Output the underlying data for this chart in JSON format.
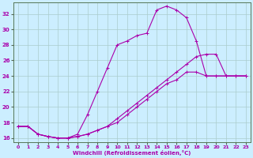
{
  "xlabel": "Windchill (Refroidissement éolien,°C)",
  "ylabel": "",
  "bg_color": "#cceeff",
  "line_color": "#aa00aa",
  "grid_color": "#aacccc",
  "xlim": [
    -0.5,
    23.5
  ],
  "ylim": [
    15.5,
    33.5
  ],
  "xticks": [
    0,
    1,
    2,
    3,
    4,
    5,
    6,
    7,
    8,
    9,
    10,
    11,
    12,
    13,
    14,
    15,
    16,
    17,
    18,
    19,
    20,
    21,
    22,
    23
  ],
  "yticks": [
    16,
    18,
    20,
    22,
    24,
    26,
    28,
    30,
    32
  ],
  "line1_x": [
    0,
    1,
    2,
    3,
    4,
    5,
    6,
    7,
    8,
    9,
    10,
    11,
    12,
    13,
    14,
    15,
    16,
    17,
    18,
    19,
    20,
    21,
    22,
    23
  ],
  "line1_y": [
    17.5,
    17.5,
    16.5,
    16.2,
    16.0,
    16.0,
    16.5,
    19.0,
    22.0,
    25.0,
    28.0,
    28.5,
    29.2,
    29.5,
    32.5,
    33.0,
    32.5,
    31.5,
    28.5,
    24.0,
    24.0,
    24.0,
    24.0,
    24.0
  ],
  "line2_x": [
    0,
    1,
    2,
    3,
    4,
    5,
    6,
    7,
    8,
    9,
    10,
    11,
    12,
    13,
    14,
    15,
    16,
    17,
    18,
    19,
    20,
    21,
    22,
    23
  ],
  "line2_y": [
    17.5,
    17.5,
    16.5,
    16.2,
    16.0,
    16.0,
    16.2,
    16.5,
    17.0,
    17.5,
    18.5,
    19.5,
    20.5,
    21.5,
    22.5,
    23.5,
    24.5,
    25.5,
    26.5,
    26.8,
    26.8,
    24.0,
    24.0,
    24.0
  ],
  "line3_x": [
    0,
    1,
    2,
    3,
    4,
    5,
    6,
    7,
    8,
    9,
    10,
    11,
    12,
    13,
    14,
    15,
    16,
    17,
    18,
    19,
    20,
    21,
    22,
    23
  ],
  "line3_y": [
    17.5,
    17.5,
    16.5,
    16.2,
    16.0,
    16.0,
    16.2,
    16.5,
    17.0,
    17.5,
    18.0,
    19.0,
    20.0,
    21.0,
    22.0,
    23.0,
    23.5,
    24.5,
    24.5,
    24.0,
    24.0,
    24.0,
    24.0,
    24.0
  ]
}
